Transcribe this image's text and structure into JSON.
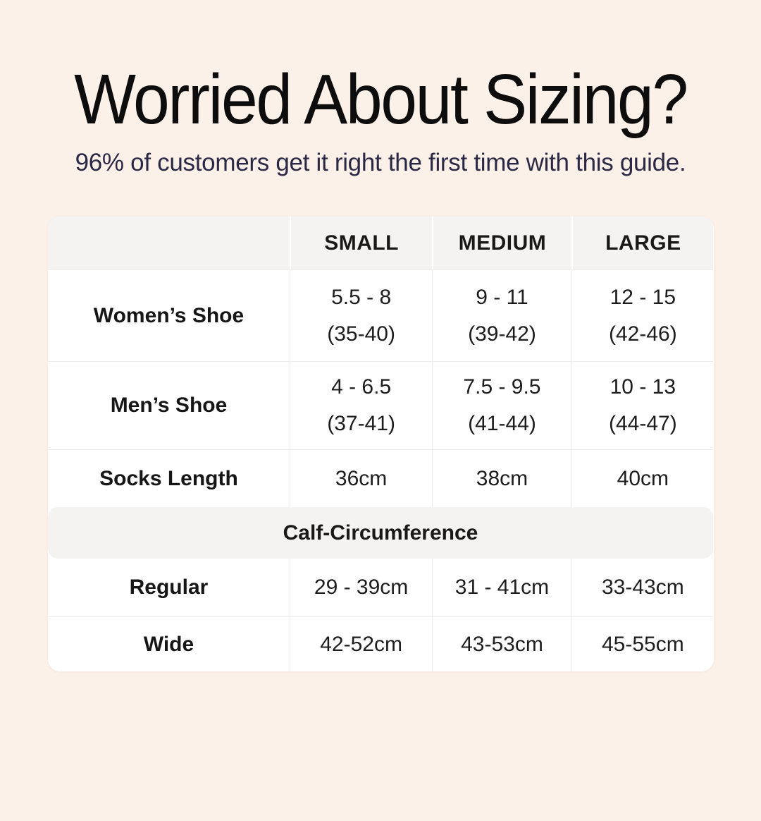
{
  "header": {
    "title": "Worried About Sizing?",
    "subtitle": "96% of customers get it right the first time with this guide."
  },
  "colors": {
    "page_background": "#fcf1e8",
    "title_text": "#0d0d0d",
    "subtitle_text": "#2a2844",
    "table_background": "#ffffff",
    "band_background": "#f4f3f1",
    "grid_line": "#ececec",
    "table_text": "#1d1d1d"
  },
  "chart_data": {
    "type": "table",
    "title": "Worried About Sizing?",
    "subtitle": "96% of customers get it right the first time with this guide.",
    "size_columns": [
      "SMALL",
      "MEDIUM",
      "LARGE"
    ],
    "shoe_rows": [
      {
        "label": "Women’s Shoe",
        "small": {
          "range": "5.5 - 8",
          "eu": "(35-40)"
        },
        "medium": {
          "range": "9 - 11",
          "eu": "(39-42)"
        },
        "large": {
          "range": "12 - 15",
          "eu": "(42-46)"
        }
      },
      {
        "label": "Men’s Shoe",
        "small": {
          "range": "4 - 6.5",
          "eu": "(37-41)"
        },
        "medium": {
          "range": "7.5 - 9.5",
          "eu": "(41-44)"
        },
        "large": {
          "range": "10 - 13",
          "eu": "(44-47)"
        }
      }
    ],
    "socks_row": {
      "label": "Socks Length",
      "small": "36cm",
      "medium": "38cm",
      "large": "40cm"
    },
    "calf_section": {
      "header": "Calf-Circumference",
      "rows": [
        {
          "label": "Regular",
          "small": "29 - 39cm",
          "medium": "31 - 41cm",
          "large": "33-43cm"
        },
        {
          "label": "Wide",
          "small": "42-52cm",
          "medium": "43-53cm",
          "large": "45-55cm"
        }
      ]
    }
  }
}
